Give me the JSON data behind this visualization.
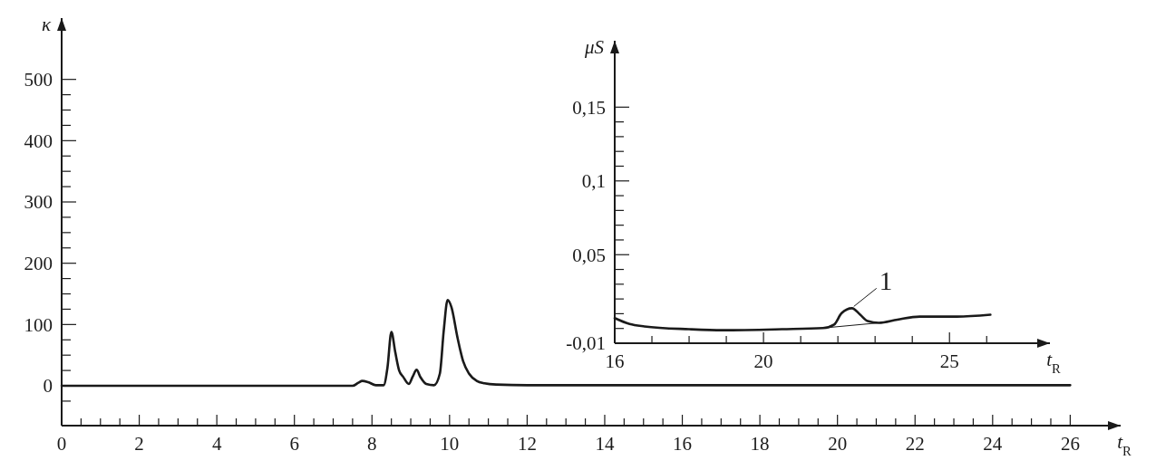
{
  "chart_data": [
    {
      "type": "line",
      "xlabel": "t$_{R}$",
      "ylabel": "κ",
      "xlim": [
        0,
        27.3
      ],
      "ylim": [
        -65,
        600
      ],
      "xticks": [
        0,
        {
          "value": 0.5,
          "label": null
        },
        {
          "value": 1,
          "label": null
        },
        {
          "value": 1.5,
          "label": null
        },
        2,
        {
          "value": 2.5,
          "label": null
        },
        {
          "value": 3,
          "label": null
        },
        {
          "value": 3.5,
          "label": null
        },
        4,
        {
          "value": 4.5,
          "label": null
        },
        {
          "value": 5,
          "label": null
        },
        {
          "value": 5.5,
          "label": null
        },
        6,
        {
          "value": 6.5,
          "label": null
        },
        {
          "value": 7,
          "label": null
        },
        {
          "value": 7.5,
          "label": null
        },
        8,
        {
          "value": 8.5,
          "label": null
        },
        {
          "value": 9,
          "label": null
        },
        {
          "value": 9.5,
          "label": null
        },
        10,
        {
          "value": 10.5,
          "label": null
        },
        {
          "value": 11,
          "label": null
        },
        {
          "value": 11.5,
          "label": null
        },
        12,
        {
          "value": 12.5,
          "label": null
        },
        {
          "value": 13,
          "label": null
        },
        {
          "value": 13.5,
          "label": null
        },
        14,
        {
          "value": 14.5,
          "label": null
        },
        {
          "value": 15,
          "label": null
        },
        {
          "value": 15.5,
          "label": null
        },
        16,
        {
          "value": 16.5,
          "label": null
        },
        {
          "value": 17,
          "label": null
        },
        {
          "value": 17.5,
          "label": null
        },
        18,
        {
          "value": 18.5,
          "label": null
        },
        {
          "value": 19,
          "label": null
        },
        {
          "value": 19.5,
          "label": null
        },
        20,
        {
          "value": 20.5,
          "label": null
        },
        {
          "value": 21,
          "label": null
        },
        {
          "value": 21.5,
          "label": null
        },
        22,
        {
          "value": 22.5,
          "label": null
        },
        {
          "value": 23,
          "label": null
        },
        {
          "value": 23.5,
          "label": null
        },
        24,
        {
          "value": 24.5,
          "label": null
        },
        {
          "value": 25,
          "label": null
        },
        {
          "value": 25.5,
          "label": null
        },
        26
      ],
      "yticks": [
        {
          "value": -25,
          "label": null
        },
        0,
        {
          "value": 25,
          "label": null
        },
        {
          "value": 50,
          "label": null
        },
        {
          "value": 75,
          "label": null
        },
        100,
        {
          "value": 125,
          "label": null
        },
        {
          "value": 150,
          "label": null
        },
        {
          "value": 175,
          "label": null
        },
        200,
        {
          "value": 225,
          "label": null
        },
        {
          "value": 250,
          "label": null
        },
        {
          "value": 275,
          "label": null
        },
        300,
        {
          "value": 325,
          "label": null
        },
        {
          "value": 350,
          "label": null
        },
        {
          "value": 375,
          "label": null
        },
        400,
        {
          "value": 425,
          "label": null
        },
        {
          "value": 450,
          "label": null
        },
        {
          "value": 475,
          "label": null
        },
        500
      ],
      "grid": false,
      "marker": "none",
      "line_style": "solid",
      "series": [
        {
          "color": "#1a1a1a",
          "x": [
            0,
            7.5,
            7.65,
            7.75,
            7.9,
            8.1,
            8.3,
            8.4,
            8.5,
            8.6,
            8.7,
            8.8,
            8.95,
            9.05,
            9.15,
            9.25,
            9.4,
            9.6,
            9.75,
            9.85,
            9.95,
            10.05,
            10.2,
            10.35,
            10.5,
            10.7,
            10.9,
            11.2,
            12,
            26
          ],
          "values": [
            0,
            0,
            5,
            8,
            6,
            1,
            1,
            30,
            88,
            55,
            25,
            15,
            3,
            15,
            26,
            14,
            3,
            1,
            20,
            90,
            140,
            128,
            80,
            40,
            20,
            8,
            4,
            2,
            1,
            1
          ]
        }
      ]
    },
    {
      "type": "line",
      "xlabel": "t$_{R}$",
      "ylabel": "μS",
      "xlim": [
        16,
        27.7
      ],
      "ylim": [
        -0.01,
        0.195
      ],
      "xticks": [
        16,
        {
          "value": 17,
          "label": null
        },
        {
          "value": 18,
          "label": null
        },
        {
          "value": 19,
          "label": null
        },
        20,
        {
          "value": 21,
          "label": null
        },
        {
          "value": 22,
          "label": null
        },
        {
          "value": 23,
          "label": null
        },
        {
          "value": 24,
          "label": null
        },
        25,
        {
          "value": 26,
          "label": null
        }
      ],
      "yticks": [
        {
          "value": -0.01,
          "label": "-0,01"
        },
        {
          "value": 0,
          "label": null
        },
        {
          "value": 0.01,
          "label": null
        },
        {
          "value": 0.02,
          "label": null
        },
        {
          "value": 0.03,
          "label": null
        },
        {
          "value": 0.04,
          "label": null
        },
        {
          "value": 0.05,
          "label": "0,05"
        },
        {
          "value": 0.06,
          "label": null
        },
        {
          "value": 0.07,
          "label": null
        },
        {
          "value": 0.08,
          "label": null
        },
        {
          "value": 0.09,
          "label": null
        },
        {
          "value": 0.1,
          "label": "0,1"
        },
        {
          "value": 0.11,
          "label": null
        },
        {
          "value": 0.12,
          "label": null
        },
        {
          "value": 0.13,
          "label": null
        },
        {
          "value": 0.14,
          "label": null
        },
        {
          "value": 0.15,
          "label": "0,15"
        }
      ],
      "grid": false,
      "marker": "none",
      "line_style": "solid",
      "annotations": [
        {
          "text": "1",
          "x": 22.38,
          "y": 0.0137
        }
      ],
      "series": [
        {
          "color": "#1a1a1a",
          "x": [
            16,
            16.4,
            16.8,
            18,
            18.9,
            20.5,
            21.6,
            21.9,
            22.1,
            22.38,
            22.6,
            22.8,
            23.1,
            23.6,
            24.2,
            25.2,
            26.1
          ],
          "values": [
            0.007,
            0.003,
            0.0014,
            -0.0005,
            -0.0012,
            -0.0005,
            0.0003,
            0.0027,
            0.0104,
            0.0137,
            0.0093,
            0.005,
            0.0038,
            0.006,
            0.008,
            0.008,
            0.0093
          ]
        },
        {
          "color": "#1a1a1a",
          "x": [
            21.6,
            23.1
          ],
          "values": [
            0.0003,
            0.0038
          ]
        }
      ]
    }
  ]
}
